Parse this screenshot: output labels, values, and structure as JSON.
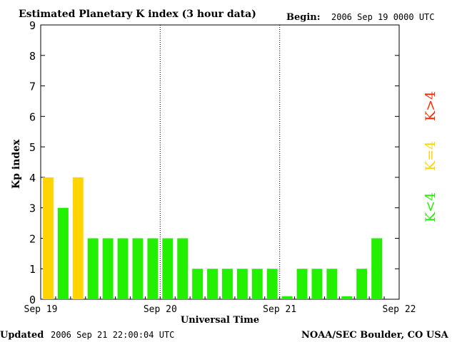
{
  "header": {
    "title": "Estimated Planetary K index (3 hour data)",
    "begin_label": "Begin:",
    "begin_value": "2006 Sep 19 0000 UTC"
  },
  "footer": {
    "updated_label": "Updated",
    "updated_value": "2006 Sep 21 22:00:04 UTC",
    "source": "NOAA/SEC Boulder, CO USA"
  },
  "legend": {
    "k_gt4": "K>4",
    "k_eq4": "K=4",
    "k_lt4": "K<4"
  },
  "colors": {
    "k_lt4": "#22f000",
    "k_eq4": "#ffd400",
    "k_gt4": "#ff2a00"
  },
  "chart_data": {
    "type": "bar",
    "title": "Estimated Planetary K index (3 hour data)",
    "xlabel": "Universal Time",
    "ylabel": "Kp index",
    "ylim": [
      0,
      9
    ],
    "yticks": [
      0,
      1,
      2,
      3,
      4,
      5,
      6,
      7,
      8,
      9
    ],
    "xticks": [
      "Sep 19",
      "Sep 20",
      "Sep 21",
      "Sep 22"
    ],
    "xlim_days": [
      0,
      3
    ],
    "bars_per_day": 8,
    "values": [
      4,
      3,
      4,
      2,
      2,
      2,
      2,
      2,
      2,
      2,
      1,
      1,
      1,
      1,
      1,
      1,
      0.1,
      1,
      1,
      1,
      0.1,
      1,
      2
    ],
    "grid": "dotted vertical day separators"
  }
}
